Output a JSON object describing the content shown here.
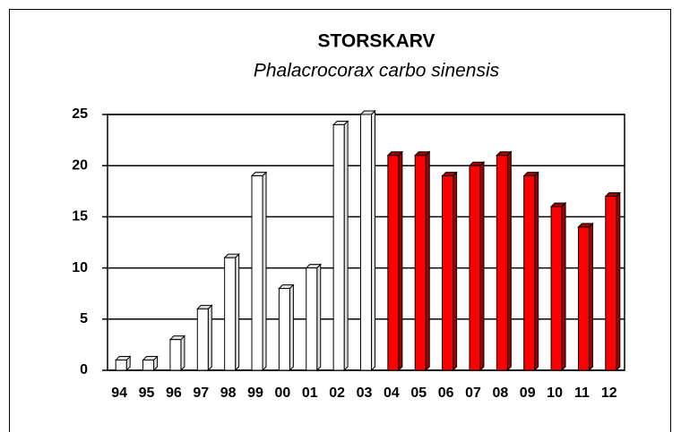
{
  "chart_data": {
    "type": "bar",
    "title": "STORSKARV",
    "subtitle": "Phalacrocorax carbo sinensis",
    "categories": [
      "94",
      "95",
      "96",
      "97",
      "98",
      "99",
      "00",
      "01",
      "02",
      "03",
      "04",
      "05",
      "06",
      "07",
      "08",
      "09",
      "10",
      "11",
      "12"
    ],
    "values": [
      1,
      1,
      3,
      6,
      11,
      19,
      8,
      10,
      24,
      25,
      21,
      21,
      19,
      20,
      21,
      19,
      16,
      14,
      17
    ],
    "colors": [
      "#ffffff",
      "#ffffff",
      "#ffffff",
      "#ffffff",
      "#ffffff",
      "#ffffff",
      "#ffffff",
      "#ffffff",
      "#ffffff",
      "#ffffff",
      "#ff0000",
      "#ff0000",
      "#ff0000",
      "#ff0000",
      "#ff0000",
      "#ff0000",
      "#ff0000",
      "#ff0000",
      "#ff0000"
    ],
    "ylim": [
      0,
      25
    ],
    "yticks": [
      0,
      5,
      10,
      15,
      20,
      25
    ],
    "grid": true
  }
}
